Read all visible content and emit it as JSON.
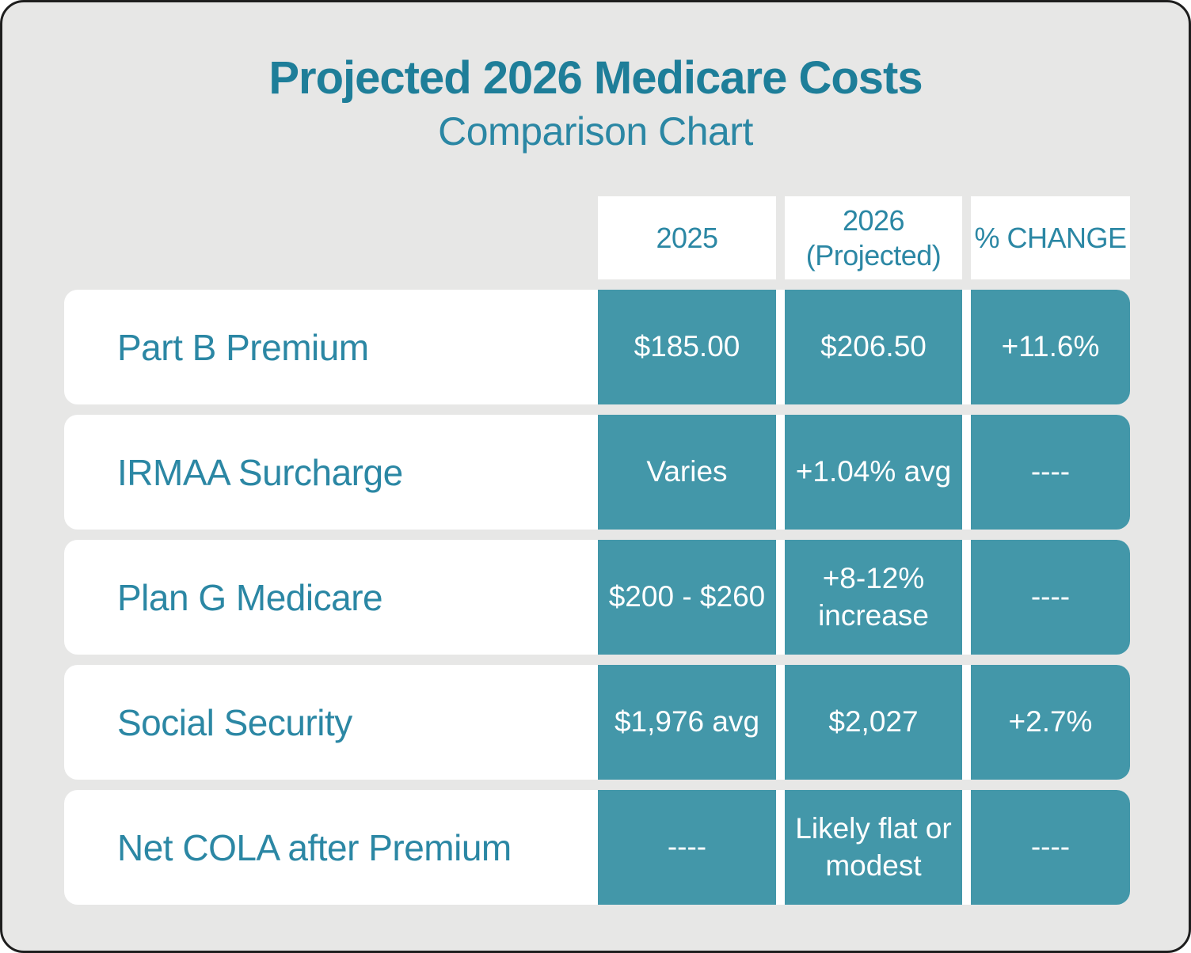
{
  "title": "Projected 2026 Medicare Costs",
  "subtitle": "Comparison Chart",
  "chart_data": {
    "type": "table",
    "title": "Projected 2026 Medicare Costs",
    "subtitle": "Comparison Chart",
    "columns": [
      "2025",
      "2026\n(Projected)",
      "% CHANGE"
    ],
    "rows": [
      {
        "label": "Part B Premium",
        "values": [
          "$185.00",
          "$206.50",
          "+11.6%"
        ]
      },
      {
        "label": "IRMAA Surcharge",
        "values": [
          "Varies",
          "+1.04% avg",
          "----"
        ]
      },
      {
        "label": "Plan G Medicare",
        "values": [
          "$200 - $260",
          "+8-12%\nincrease",
          "----"
        ]
      },
      {
        "label": "Social Security",
        "values": [
          "$1,976 avg",
          "$2,027",
          "+2.7%"
        ]
      },
      {
        "label": "Net COLA after Premium",
        "values": [
          "----",
          "Likely flat or\nmodest",
          "----"
        ]
      }
    ]
  },
  "colors": {
    "teal_cell": "#4397a9",
    "teal_text": "#2b87a4",
    "title_teal": "#1e7e99",
    "card_bg": "#e7e7e6",
    "row_bg": "#ffffff",
    "border": "#1e1e1e"
  }
}
